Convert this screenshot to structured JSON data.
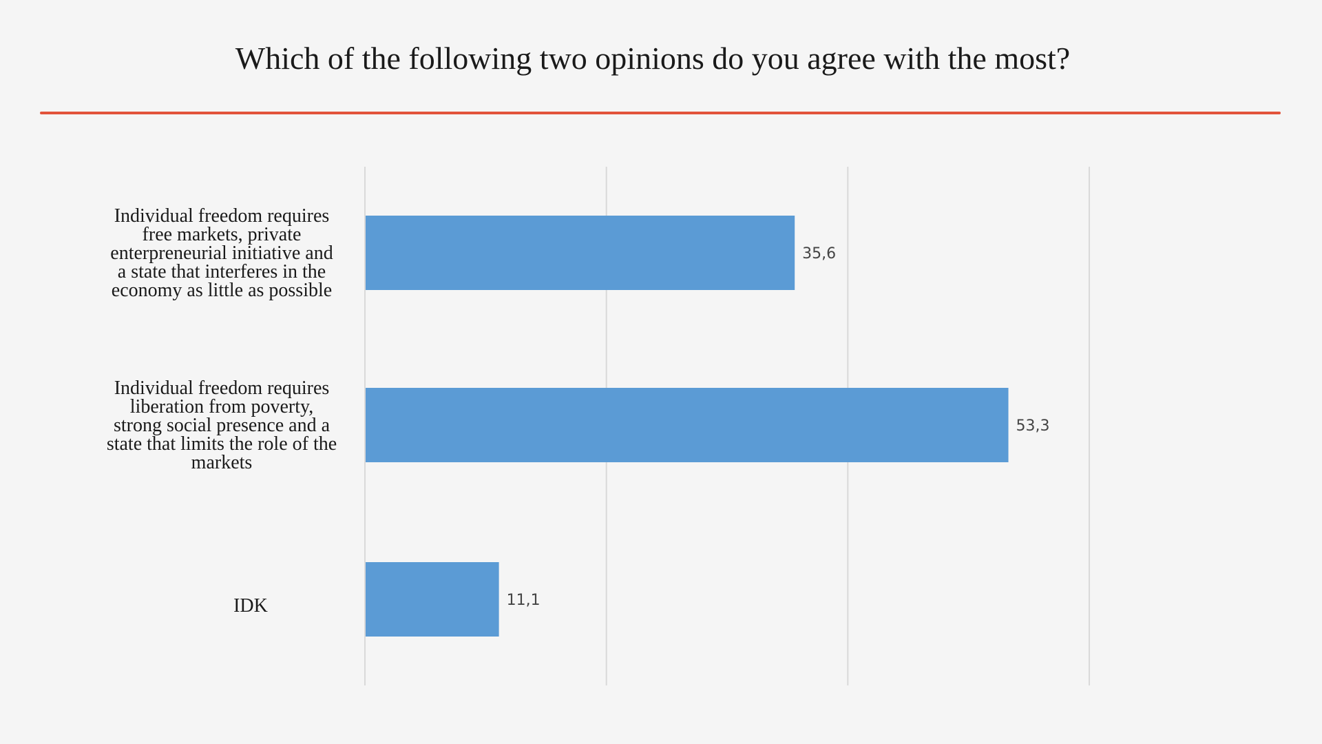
{
  "chart_data": {
    "type": "bar",
    "orientation": "horizontal",
    "title": "Which of the following two opinions do you agree with the most?",
    "categories": [
      [
        "Individual freedom requires",
        "free markets, private",
        "enterpreneurial initiative and",
        "a state that interferes in the",
        "economy as little as possible"
      ],
      [
        "Individual freedom requires",
        "liberation from poverty,",
        "strong social presence and a",
        "state that limits the role of the",
        "markets"
      ],
      [
        "IDK"
      ]
    ],
    "values": [
      35.6,
      53.3,
      11.1
    ],
    "value_labels": [
      "35,6",
      "53,3",
      "11,1"
    ],
    "xlim": [
      0,
      60
    ],
    "xgrid_ticks": [
      0,
      20,
      40,
      60
    ],
    "tick_labels_shown": false,
    "grid": true,
    "legend": "none",
    "colors": {
      "bar": "#5b9bd5",
      "rule": "#e2533b",
      "grid": "#d9d9d9",
      "background": "#f5f5f5"
    }
  }
}
